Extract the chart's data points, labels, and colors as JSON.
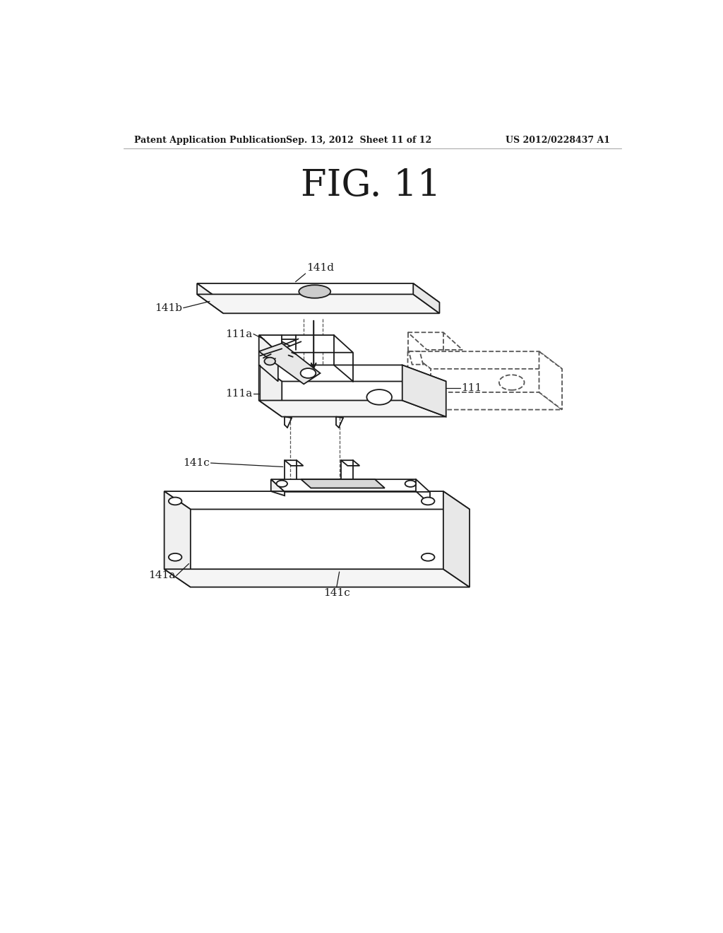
{
  "background_color": "#ffffff",
  "header_left": "Patent Application Publication",
  "header_mid": "Sep. 13, 2012  Sheet 11 of 12",
  "header_right": "US 2012/0228437 A1",
  "fig_title": "FIG. 11",
  "line_color": "#1a1a1a",
  "dash_color": "#555555",
  "label_fontsize": 11,
  "header_fontsize": 9,
  "title_fontsize": 38
}
